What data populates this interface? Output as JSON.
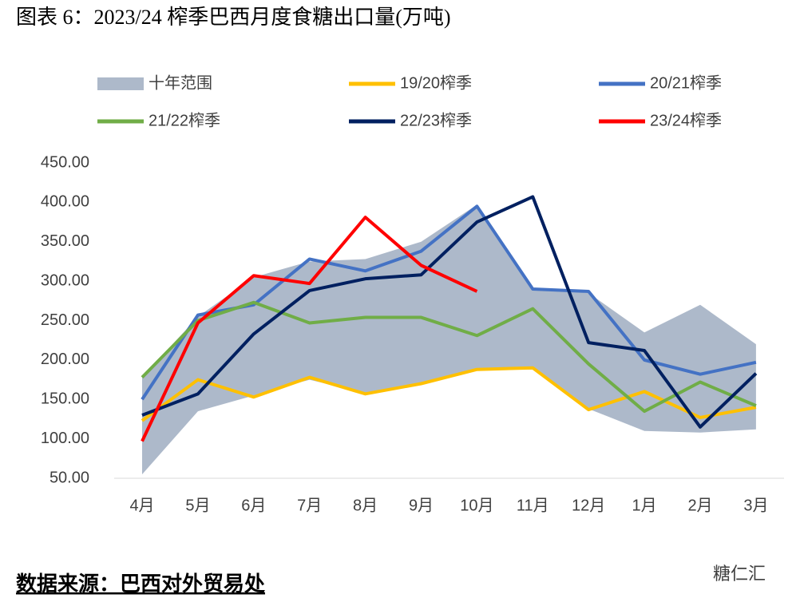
{
  "chart_data": {
    "type": "line",
    "title": "图表 6：2023/24 榨季巴西月度食糖出口量(万吨)",
    "source": "数据来源：巴西对外贸易处",
    "watermark": "糖仁汇",
    "categories": [
      "4月",
      "5月",
      "6月",
      "7月",
      "8月",
      "9月",
      "10月",
      "11月",
      "12月",
      "1月",
      "2月",
      "3月"
    ],
    "range": {
      "name": "十年范围",
      "color": "#adb9ca",
      "lower": [
        55,
        135,
        155,
        175,
        158,
        170,
        188,
        188,
        138,
        110,
        108,
        112
      ],
      "upper": [
        178,
        255,
        305,
        325,
        328,
        350,
        397,
        290,
        285,
        235,
        270,
        220
      ]
    },
    "series": [
      {
        "name": "19/20榨季",
        "color": "#ffc000",
        "values": [
          123,
          175,
          153,
          178,
          157,
          170,
          188,
          190,
          137,
          160,
          127,
          140
        ]
      },
      {
        "name": "20/21榨季",
        "color": "#4472c4",
        "values": [
          150,
          257,
          270,
          328,
          313,
          338,
          395,
          290,
          287,
          200,
          182,
          197
        ]
      },
      {
        "name": "21/22榨季",
        "color": "#70ad47",
        "values": [
          178,
          250,
          273,
          247,
          254,
          254,
          231,
          265,
          195,
          135,
          172,
          142
        ]
      },
      {
        "name": "22/23榨季",
        "color": "#002060",
        "values": [
          130,
          157,
          233,
          288,
          303,
          308,
          375,
          407,
          222,
          212,
          115,
          183
        ]
      },
      {
        "name": "23/24榨季",
        "color": "#ff0000",
        "values": [
          97,
          247,
          307,
          297,
          381,
          320,
          287,
          null,
          null,
          null,
          null,
          null
        ]
      }
    ],
    "ylim": [
      50,
      450
    ],
    "yticks": [
      {
        "value": 50,
        "label": "50.00"
      },
      {
        "value": 100,
        "label": "100.00"
      },
      {
        "value": 150,
        "label": "150.00"
      },
      {
        "value": 200,
        "label": "200.00"
      },
      {
        "value": 250,
        "label": "250.00"
      },
      {
        "value": 300,
        "label": "300.00"
      },
      {
        "value": 350,
        "label": "350.00"
      },
      {
        "value": 400,
        "label": "400.00"
      },
      {
        "value": 450,
        "label": "450.00"
      }
    ],
    "grid": false
  }
}
